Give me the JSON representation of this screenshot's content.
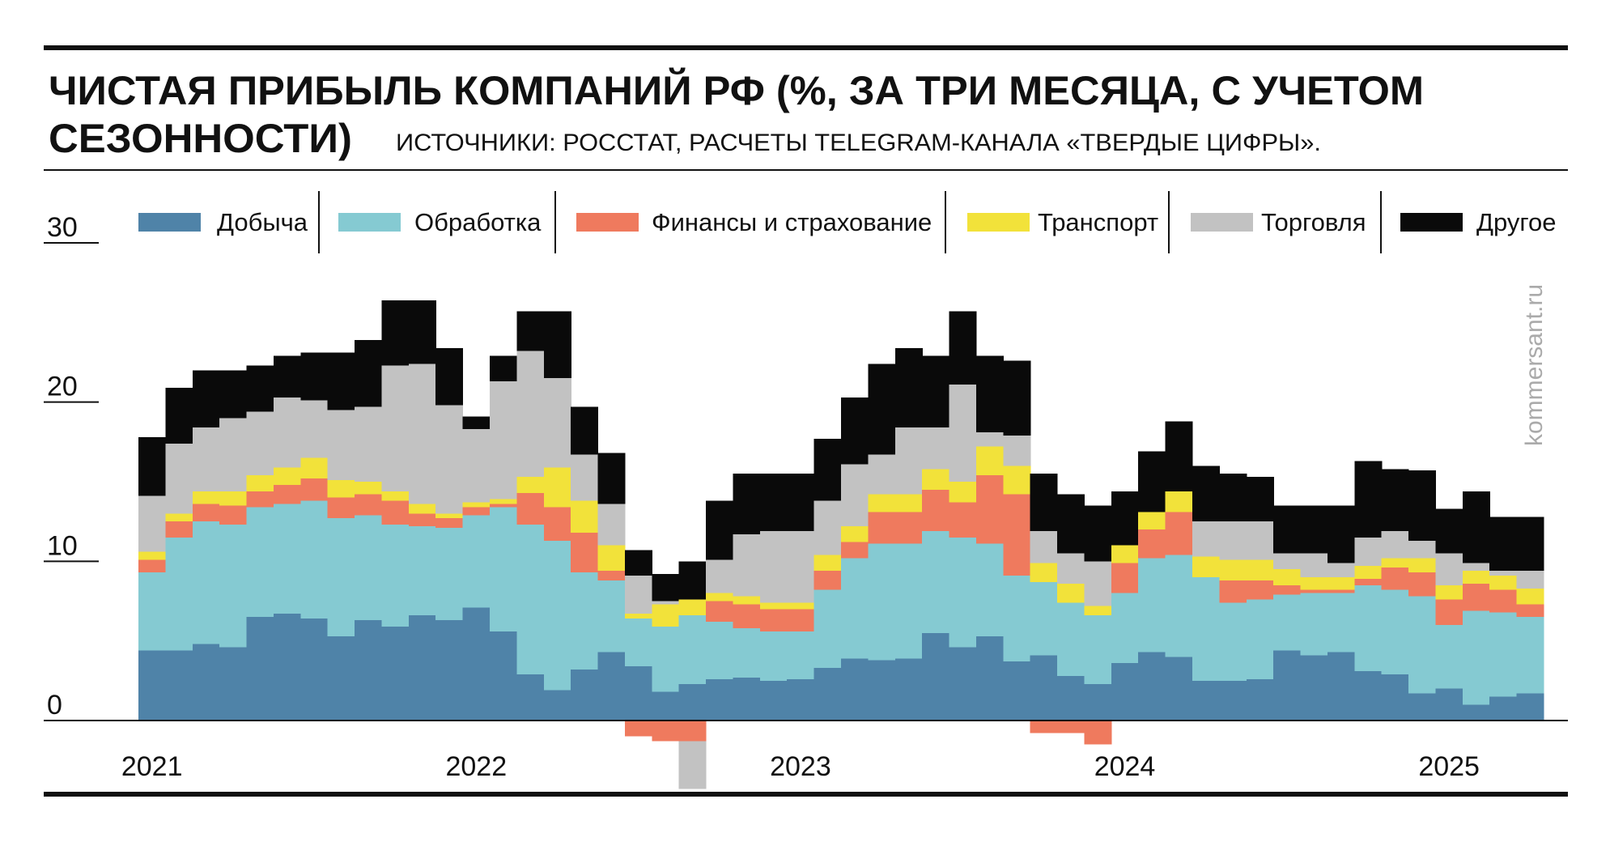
{
  "chart_data": {
    "type": "stacked-step",
    "title": [
      "ЧИСТАЯ ПРИБЫЛЬ КОМПАНИЙ РФ (%, ЗА ТРИ МЕСЯЦА, С УЧЕТОМ",
      "СЕЗОННОСТИ)"
    ],
    "source": "ИСТОЧНИКИ: РОССТАТ, РАСЧЕТЫ TELEGRAM-КАНАЛА «ТВЕРДЫЕ ЦИФРЫ».",
    "watermark": "kommersant.ru",
    "categories": [
      "2021",
      null,
      null,
      null,
      null,
      null,
      null,
      null,
      null,
      null,
      null,
      null,
      "2022",
      null,
      null,
      null,
      null,
      null,
      null,
      null,
      null,
      null,
      null,
      null,
      "2023",
      null,
      null,
      null,
      null,
      null,
      null,
      null,
      null,
      null,
      null,
      null,
      "2024",
      null,
      null,
      null,
      null,
      null,
      null,
      null,
      null,
      null,
      null,
      null,
      "2025",
      null,
      null,
      null
    ],
    "ylim": [
      -4,
      30
    ],
    "yticks": [
      0,
      10,
      20,
      30
    ],
    "series": [
      {
        "name": "Добыча",
        "color": "#4f83a8",
        "values": [
          4.4,
          4.4,
          4.8,
          4.6,
          6.5,
          6.7,
          6.4,
          5.3,
          6.3,
          5.9,
          6.6,
          6.3,
          7.1,
          5.6,
          2.9,
          1.9,
          3.2,
          4.3,
          3.4,
          1.8,
          2.3,
          2.6,
          2.7,
          2.5,
          2.6,
          3.3,
          3.9,
          3.8,
          3.9,
          5.5,
          4.6,
          5.3,
          3.7,
          4.1,
          2.8,
          2.3,
          3.6,
          4.3,
          4.0,
          2.5,
          2.5,
          2.6,
          4.4,
          4.1,
          4.3,
          3.1,
          2.9,
          1.7,
          2.0,
          1.0,
          1.5,
          1.7
        ]
      },
      {
        "name": "Обработка",
        "color": "#85cad2",
        "values": [
          4.9,
          7.1,
          7.7,
          7.7,
          6.9,
          6.9,
          7.4,
          7.4,
          6.6,
          6.4,
          5.6,
          5.8,
          5.8,
          7.8,
          9.4,
          9.4,
          6.1,
          4.5,
          3.0,
          4.1,
          4.3,
          3.6,
          3.1,
          3.1,
          3.0,
          4.9,
          6.3,
          7.3,
          7.2,
          6.4,
          6.9,
          5.8,
          5.4,
          4.6,
          4.6,
          4.3,
          4.4,
          5.9,
          6.4,
          6.5,
          4.9,
          5.0,
          3.5,
          3.9,
          3.7,
          5.4,
          5.3,
          6.1,
          4.0,
          5.9,
          5.3,
          4.8
        ]
      },
      {
        "name": "Финансы и страхование",
        "color": "#ef7a5e",
        "values": [
          0.8,
          1.0,
          1.1,
          1.2,
          1.0,
          1.2,
          1.4,
          1.3,
          1.3,
          1.5,
          0.8,
          0.6,
          0.5,
          0.2,
          2.0,
          2.1,
          2.5,
          0.6,
          -1.0,
          -1.3,
          -1.3,
          1.3,
          1.5,
          1.4,
          1.4,
          1.2,
          1.0,
          2.0,
          2.0,
          2.6,
          2.2,
          4.3,
          5.1,
          -0.8,
          -0.8,
          -1.5,
          1.9,
          1.8,
          2.7,
          0,
          1.4,
          1.2,
          0.6,
          0.2,
          0.2,
          0.4,
          1.4,
          1.5,
          1.6,
          1.7,
          1.4,
          0.8
        ]
      },
      {
        "name": "Транспорт",
        "color": "#f2e23a",
        "values": [
          0.5,
          0.5,
          0.8,
          0.9,
          1.0,
          1.1,
          1.3,
          1.1,
          0.8,
          0.6,
          0.6,
          0.3,
          0.3,
          0.3,
          1.0,
          2.5,
          2.0,
          1.6,
          0.3,
          1.4,
          1.0,
          0.5,
          0.5,
          0.4,
          0.4,
          1.0,
          1.0,
          1.1,
          1.1,
          1.3,
          1.3,
          1.8,
          1.8,
          1.2,
          1.2,
          0.6,
          1.1,
          1.1,
          1.3,
          1.3,
          1.3,
          1.3,
          1.0,
          0.8,
          0.8,
          0.8,
          0.6,
          0.9,
          0.9,
          0.8,
          0.9,
          1.0
        ]
      },
      {
        "name": "Торговля",
        "color": "#c2c2c2",
        "values": [
          3.5,
          4.4,
          4.0,
          4.6,
          4.0,
          4.4,
          3.6,
          4.4,
          4.7,
          7.9,
          8.8,
          6.8,
          4.6,
          7.4,
          7.9,
          5.6,
          2.9,
          2.6,
          2.4,
          0.2,
          -3.0,
          2.1,
          3.9,
          4.5,
          4.5,
          3.4,
          3.9,
          2.5,
          4.2,
          2.6,
          6.1,
          0.9,
          1.9,
          2.0,
          1.9,
          2.8,
          0,
          0,
          0,
          2.2,
          2.4,
          2.4,
          1.0,
          1.5,
          0.9,
          1.8,
          1.7,
          1.1,
          2.0,
          0.5,
          0.3,
          1.1
        ]
      },
      {
        "name": "Другое",
        "color": "#0a0a0a",
        "values": [
          3.7,
          3.5,
          3.6,
          3.0,
          2.9,
          2.6,
          3.0,
          3.6,
          4.2,
          4.1,
          4.0,
          3.6,
          0.8,
          1.6,
          2.5,
          4.2,
          3.0,
          3.2,
          1.6,
          1.7,
          2.4,
          3.7,
          3.8,
          3.6,
          3.6,
          3.9,
          4.2,
          5.7,
          5.0,
          4.5,
          4.6,
          4.8,
          4.7,
          3.6,
          3.7,
          3.5,
          3.4,
          3.8,
          4.4,
          3.5,
          3.0,
          2.8,
          3.0,
          3.0,
          3.6,
          4.8,
          3.9,
          4.4,
          2.8,
          4.5,
          3.4,
          3.4
        ]
      }
    ]
  }
}
